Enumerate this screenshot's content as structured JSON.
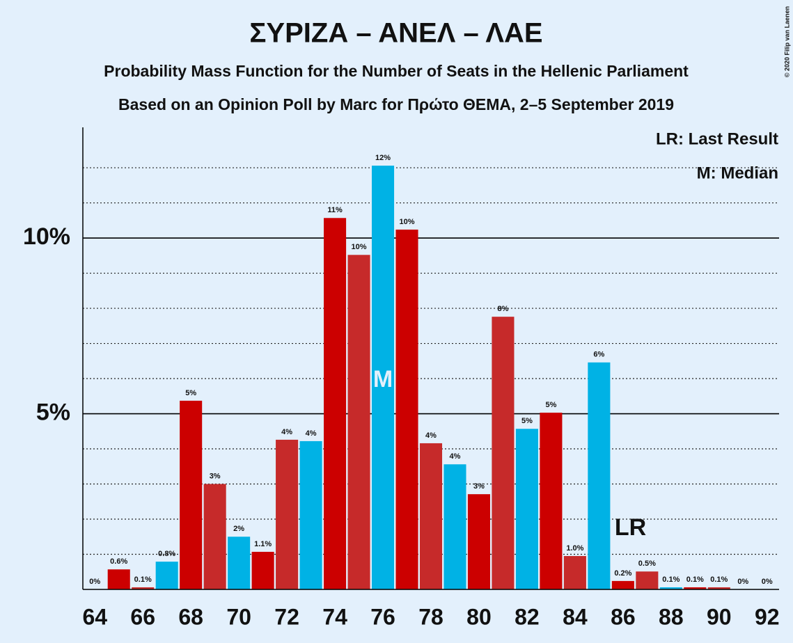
{
  "chart_data": {
    "type": "bar",
    "title": "ΣΥΡΙΖΑ – ΑΝΕΛ – ΛΑΕ",
    "subtitle": "Probability Mass Function for the Number of Seats in the Hellenic Parliament",
    "subtitle2": "Based on an Opinion Poll by Marc for Πρώτο ΘΕΜΑ, 2–5 September 2019",
    "copyright": "© 2020 Filip van Laenen",
    "legend": [
      "LR: Last Result",
      "M: Median"
    ],
    "x": [
      64,
      65,
      66,
      67,
      68,
      69,
      70,
      71,
      72,
      73,
      74,
      75,
      76,
      77,
      78,
      79,
      80,
      81,
      82,
      83,
      84,
      85,
      86,
      87,
      88,
      89,
      90,
      91,
      92
    ],
    "values": [
      0,
      0.57,
      0.06,
      0.79,
      5.37,
      3.0,
      1.5,
      1.07,
      4.26,
      4.22,
      10.57,
      9.52,
      12.06,
      10.24,
      4.16,
      3.56,
      2.71,
      7.76,
      4.57,
      5.03,
      0.95,
      6.46,
      0.24,
      0.51,
      0.06,
      0.06,
      0.06,
      0,
      0
    ],
    "value_labels": [
      "0%",
      "0.6%",
      "0.1%",
      "0.8%",
      "5%",
      "3%",
      "2%",
      "1.1%",
      "4%",
      "4%",
      "11%",
      "10%",
      "12%",
      "10%",
      "4%",
      "4%",
      "3%",
      "8%",
      "5%",
      "5%",
      "1.0%",
      "6%",
      "0.2%",
      "0.5%",
      "0.1%",
      "0.1%",
      "0.1%",
      "0%",
      "0%"
    ],
    "colors": [
      "#00b2e5",
      "#cc0000",
      "#c62a2a",
      "#00b2e5",
      "#cc0000",
      "#c62a2a",
      "#00b2e5",
      "#cc0000",
      "#c62a2a",
      "#00b2e5",
      "#cc0000",
      "#c62a2a",
      "#00b2e5",
      "#cc0000",
      "#c62a2a",
      "#00b2e5",
      "#cc0000",
      "#c62a2a",
      "#00b2e5",
      "#cc0000",
      "#c62a2a",
      "#00b2e5",
      "#cc0000",
      "#c62a2a",
      "#00b2e5",
      "#cc0000",
      "#c62a2a",
      "#00b2e5",
      "#cc0000"
    ],
    "xlim": [
      63.5,
      92.5
    ],
    "xticks": [
      64,
      66,
      68,
      70,
      72,
      74,
      76,
      78,
      80,
      82,
      84,
      86,
      88,
      90,
      92
    ],
    "ylim": [
      0,
      13.15
    ],
    "yticks": [
      {
        "value": 5,
        "label": "5%"
      },
      {
        "value": 10,
        "label": "10%"
      }
    ],
    "minor_yticks": [
      1,
      2,
      3,
      4,
      6,
      7,
      8,
      9,
      11,
      12
    ],
    "annotations": [
      {
        "text": "M",
        "x": 76
      },
      {
        "text": "LR",
        "x": 86
      }
    ]
  }
}
